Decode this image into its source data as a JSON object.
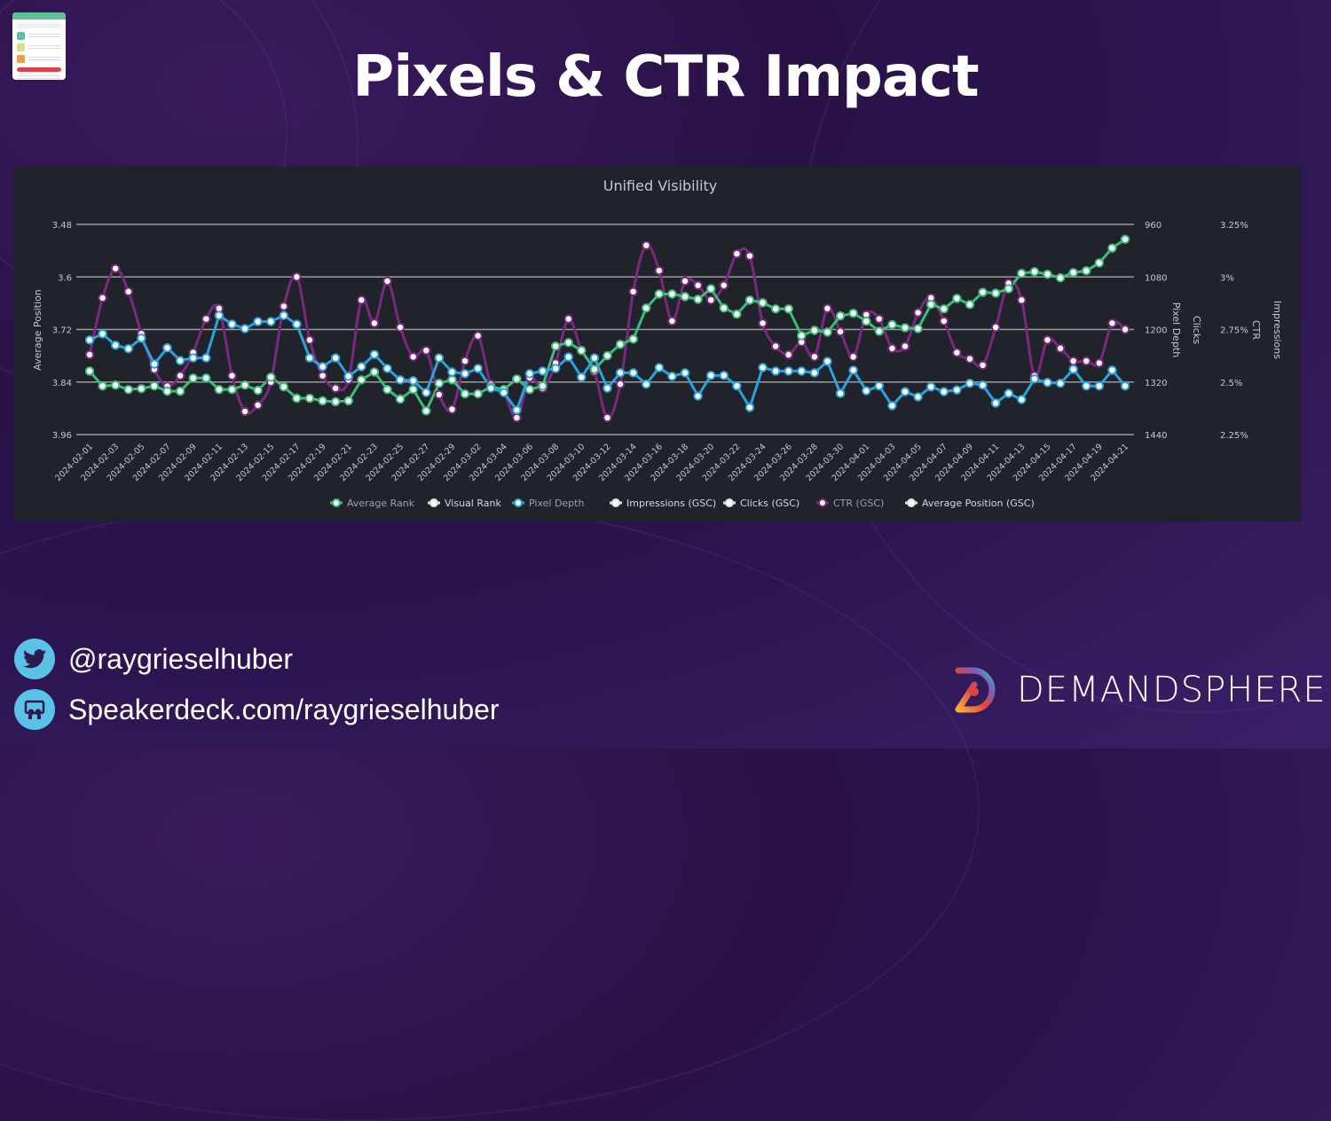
{
  "slide": {
    "title": "Pixels & CTR Impact",
    "twitter_handle": "@raygrieselhuber",
    "speakerdeck": "Speakerdeck.com/raygrieselhuber",
    "brand_name": "DEMANDSPHERE"
  },
  "colors": {
    "average_rank": "#3dbb7a",
    "pixel_depth": "#2aa3dc",
    "ctr": "#7a2a7e",
    "grid": "#9a9ca0",
    "panel_bg": "#202329"
  },
  "chart_data": {
    "type": "line",
    "title": "Unified Visibility",
    "x_start": "2024-02-01",
    "x_end": "2024-04-21",
    "x_tick_labels": [
      "2024-02-01",
      "2024-02-03",
      "2024-02-05",
      "2024-02-07",
      "2024-02-09",
      "2024-02-11",
      "2024-02-13",
      "2024-02-15",
      "2024-02-17",
      "2024-02-19",
      "2024-02-21",
      "2024-02-23",
      "2024-02-25",
      "2024-02-27",
      "2024-02-29",
      "2024-03-02",
      "2024-03-04",
      "2024-03-06",
      "2024-03-08",
      "2024-03-10",
      "2024-03-12",
      "2024-03-14",
      "2024-03-16",
      "2024-03-18",
      "2024-03-20",
      "2024-03-22",
      "2024-03-24",
      "2024-03-26",
      "2024-03-28",
      "2024-03-30",
      "2024-04-01",
      "2024-04-03",
      "2024-04-05",
      "2024-04-07",
      "2024-04-09",
      "2024-04-11",
      "2024-04-13",
      "2024-04-15",
      "2024-04-17",
      "2024-04-19",
      "2024-04-21"
    ],
    "axes": {
      "left": {
        "label": "Average Position",
        "ticks": [
          "3.48",
          "3.6",
          "3.72",
          "3.84",
          "3.96"
        ],
        "range": [
          3.48,
          3.96
        ],
        "reversed": true
      },
      "pixel_depth": {
        "label": "Pixel Depth",
        "ticks": [
          "960",
          "1080",
          "1200",
          "1320",
          "1440"
        ],
        "range": [
          960,
          1440
        ],
        "reversed": true
      },
      "clicks": {
        "label": "Clicks"
      },
      "ctr": {
        "label": "CTR",
        "ticks": [
          "3.25%",
          "3%",
          "2.75%",
          "2.5%",
          "2.25%"
        ],
        "range": [
          2.25,
          3.25
        ]
      },
      "impressions": {
        "label": "Impressions"
      }
    },
    "grid": true,
    "legend_position": "bottom",
    "legend": [
      {
        "name": "Average Rank",
        "color": "#3dbb7a",
        "active": true
      },
      {
        "name": "Visual Rank",
        "color": "#ffffff",
        "active": false
      },
      {
        "name": "Pixel Depth",
        "color": "#2aa3dc",
        "active": true
      },
      {
        "name": "Impressions (GSC)",
        "color": "#ffffff",
        "active": false
      },
      {
        "name": "Clicks (GSC)",
        "color": "#ffffff",
        "active": false
      },
      {
        "name": "CTR (GSC)",
        "color": "#7a2a7e",
        "active": true
      },
      {
        "name": "Average Position (GSC)",
        "color": "#ffffff",
        "active": false
      }
    ],
    "series": [
      {
        "name": "Average Rank",
        "axis": "left",
        "smooth": false,
        "values": [
          3.815,
          3.849,
          3.847,
          3.857,
          3.855,
          3.849,
          3.861,
          3.861,
          3.831,
          3.831,
          3.857,
          3.857,
          3.847,
          3.859,
          3.829,
          3.851,
          3.877,
          3.877,
          3.883,
          3.885,
          3.883,
          3.835,
          3.817,
          3.857,
          3.879,
          3.857,
          3.906,
          3.843,
          3.835,
          3.867,
          3.867,
          3.851,
          3.857,
          3.833,
          3.857,
          3.849,
          3.758,
          3.75,
          3.768,
          3.811,
          3.78,
          3.754,
          3.742,
          3.671,
          3.639,
          3.639,
          3.645,
          3.651,
          3.627,
          3.671,
          3.685,
          3.653,
          3.659,
          3.673,
          3.673,
          3.734,
          3.722,
          3.726,
          3.689,
          3.683,
          3.701,
          3.724,
          3.709,
          3.716,
          3.718,
          3.663,
          3.673,
          3.649,
          3.663,
          3.635,
          3.637,
          3.627,
          3.592,
          3.588,
          3.594,
          3.602,
          3.59,
          3.586,
          3.568,
          3.534,
          3.514
        ]
      },
      {
        "name": "Pixel Depth",
        "axis": "pixel_depth",
        "smooth": false,
        "values": [
          1224,
          1210,
          1236,
          1244,
          1220,
          1279,
          1242,
          1271,
          1265,
          1265,
          1168,
          1188,
          1198,
          1182,
          1182,
          1168,
          1188,
          1265,
          1285,
          1265,
          1307,
          1285,
          1257,
          1289,
          1315,
          1317,
          1344,
          1265,
          1297,
          1301,
          1289,
          1334,
          1344,
          1384,
          1301,
          1295,
          1289,
          1263,
          1309,
          1265,
          1334,
          1299,
          1299,
          1325,
          1287,
          1307,
          1299,
          1352,
          1305,
          1305,
          1329,
          1378,
          1287,
          1295,
          1295,
          1295,
          1299,
          1273,
          1346,
          1293,
          1340,
          1329,
          1374,
          1342,
          1354,
          1331,
          1342,
          1338,
          1323,
          1327,
          1368,
          1346,
          1360,
          1313,
          1321,
          1323,
          1291,
          1329,
          1329,
          1293,
          1329
        ]
      },
      {
        "name": "CTR (GSC)",
        "axis": "ctr",
        "smooth": true,
        "values": [
          2.63,
          2.9,
          3.04,
          2.93,
          2.73,
          2.56,
          2.48,
          2.53,
          2.64,
          2.8,
          2.85,
          2.53,
          2.36,
          2.39,
          2.5,
          2.86,
          3.0,
          2.7,
          2.53,
          2.47,
          2.51,
          2.89,
          2.78,
          2.98,
          2.76,
          2.62,
          2.65,
          2.44,
          2.37,
          2.6,
          2.72,
          2.49,
          2.45,
          2.33,
          2.52,
          2.47,
          2.59,
          2.8,
          2.65,
          2.55,
          2.33,
          2.49,
          2.93,
          3.15,
          3.03,
          2.79,
          2.98,
          2.96,
          2.89,
          2.96,
          3.11,
          3.1,
          2.78,
          2.67,
          2.63,
          2.69,
          2.62,
          2.85,
          2.74,
          2.62,
          2.82,
          2.8,
          2.66,
          2.67,
          2.83,
          2.9,
          2.79,
          2.64,
          2.61,
          2.58,
          2.76,
          2.97,
          2.89,
          2.53,
          2.7,
          2.66,
          2.6,
          2.6,
          2.59,
          2.78,
          2.75
        ]
      }
    ]
  }
}
